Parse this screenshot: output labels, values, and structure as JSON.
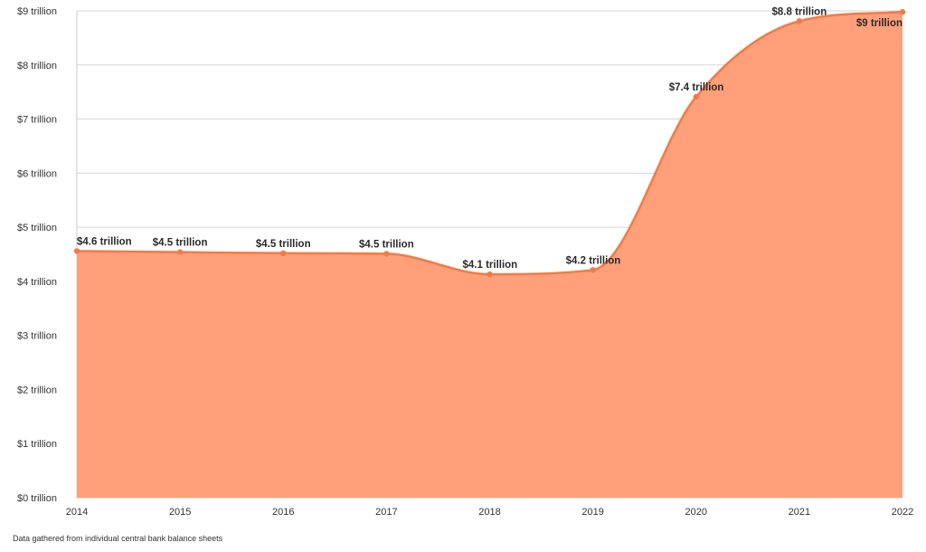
{
  "chart_data": {
    "type": "area",
    "x": [
      "2014",
      "2015",
      "2016",
      "2017",
      "2018",
      "2019",
      "2020",
      "2021",
      "2022"
    ],
    "values": [
      4.56,
      4.54,
      4.52,
      4.51,
      4.13,
      4.21,
      7.41,
      8.81,
      8.98
    ],
    "data_labels": [
      "$4.6 trillion",
      "$4.5 trillion",
      "$4.5 trillion",
      "$4.5 trillion",
      "$4.1 trillion",
      "$4.2 trillion",
      "$7.4 trillion",
      "$8.8 trillion",
      "$9 trillion"
    ],
    "y_ticks": [
      0,
      1,
      2,
      3,
      4,
      5,
      6,
      7,
      8,
      9
    ],
    "y_tick_labels": [
      "$0 trillion",
      "$1 trillion",
      "$2 trillion",
      "$3 trillion",
      "$4 trillion",
      "$5 trillion",
      "$6 trillion",
      "$7 trillion",
      "$8 trillion",
      "$9 trillion"
    ],
    "ylim": [
      0,
      9
    ],
    "grid": true,
    "legend": "none",
    "colors": {
      "fill": "#ffa07a",
      "line": "#f47a45",
      "marker": "#f47a45",
      "grid": "#d6d6d6"
    }
  },
  "footnote": "Data gathered from individual central bank balance sheets"
}
